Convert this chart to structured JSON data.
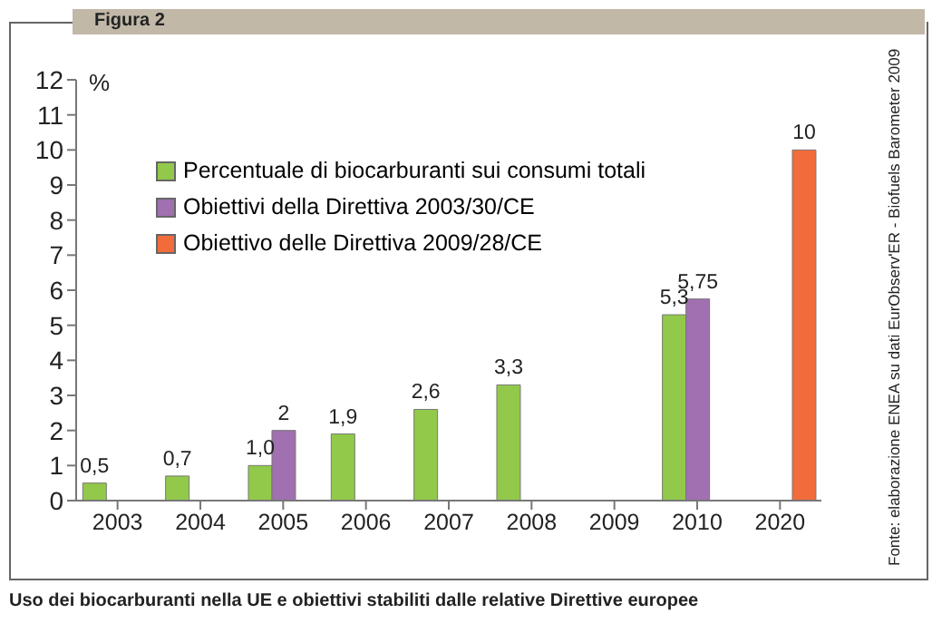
{
  "chart_data": {
    "type": "bar",
    "title": "Figura 2",
    "ylabel": "%",
    "annotations": [
      "Uso dei biocarburanti nella UE e obiettivi stabiliti dalle relative Direttive europee",
      "Fonte: elaborazione ENEA su dati EurObserv'ER - Biofuels Barometer 2009"
    ],
    "categories": [
      "2003",
      "2004",
      "2005",
      "2006",
      "2007",
      "2008",
      "2009",
      "2010",
      "2020"
    ],
    "series": [
      {
        "name": "Percentuale di biocarburanti sui consumi totali",
        "color": "#92c94a",
        "values": [
          0.5,
          0.7,
          1.0,
          1.9,
          2.6,
          3.3,
          null,
          5.3,
          null
        ],
        "value_labels": [
          "0,5",
          "0,7",
          "1,0",
          "1,9",
          "2,6",
          "3,3",
          null,
          "5,3",
          null
        ]
      },
      {
        "name": "Obiettivi della Direttiva 2003/30/CE",
        "color": "#a070b0",
        "values": [
          null,
          null,
          2,
          null,
          null,
          null,
          null,
          5.75,
          null
        ],
        "value_labels": [
          null,
          null,
          "2",
          null,
          null,
          null,
          null,
          "5,75",
          null
        ]
      },
      {
        "name": "Obiettivo delle Direttiva 2009/28/CE",
        "color": "#f26b3a",
        "values": [
          null,
          null,
          null,
          null,
          null,
          null,
          null,
          null,
          10
        ],
        "value_labels": [
          null,
          null,
          null,
          null,
          null,
          null,
          null,
          null,
          "10"
        ]
      }
    ],
    "ylim": [
      0,
      12
    ],
    "yticks": [
      0,
      1,
      2,
      3,
      4,
      5,
      6,
      7,
      8,
      9,
      10,
      11,
      12
    ],
    "grid": false,
    "legend": "top left"
  }
}
